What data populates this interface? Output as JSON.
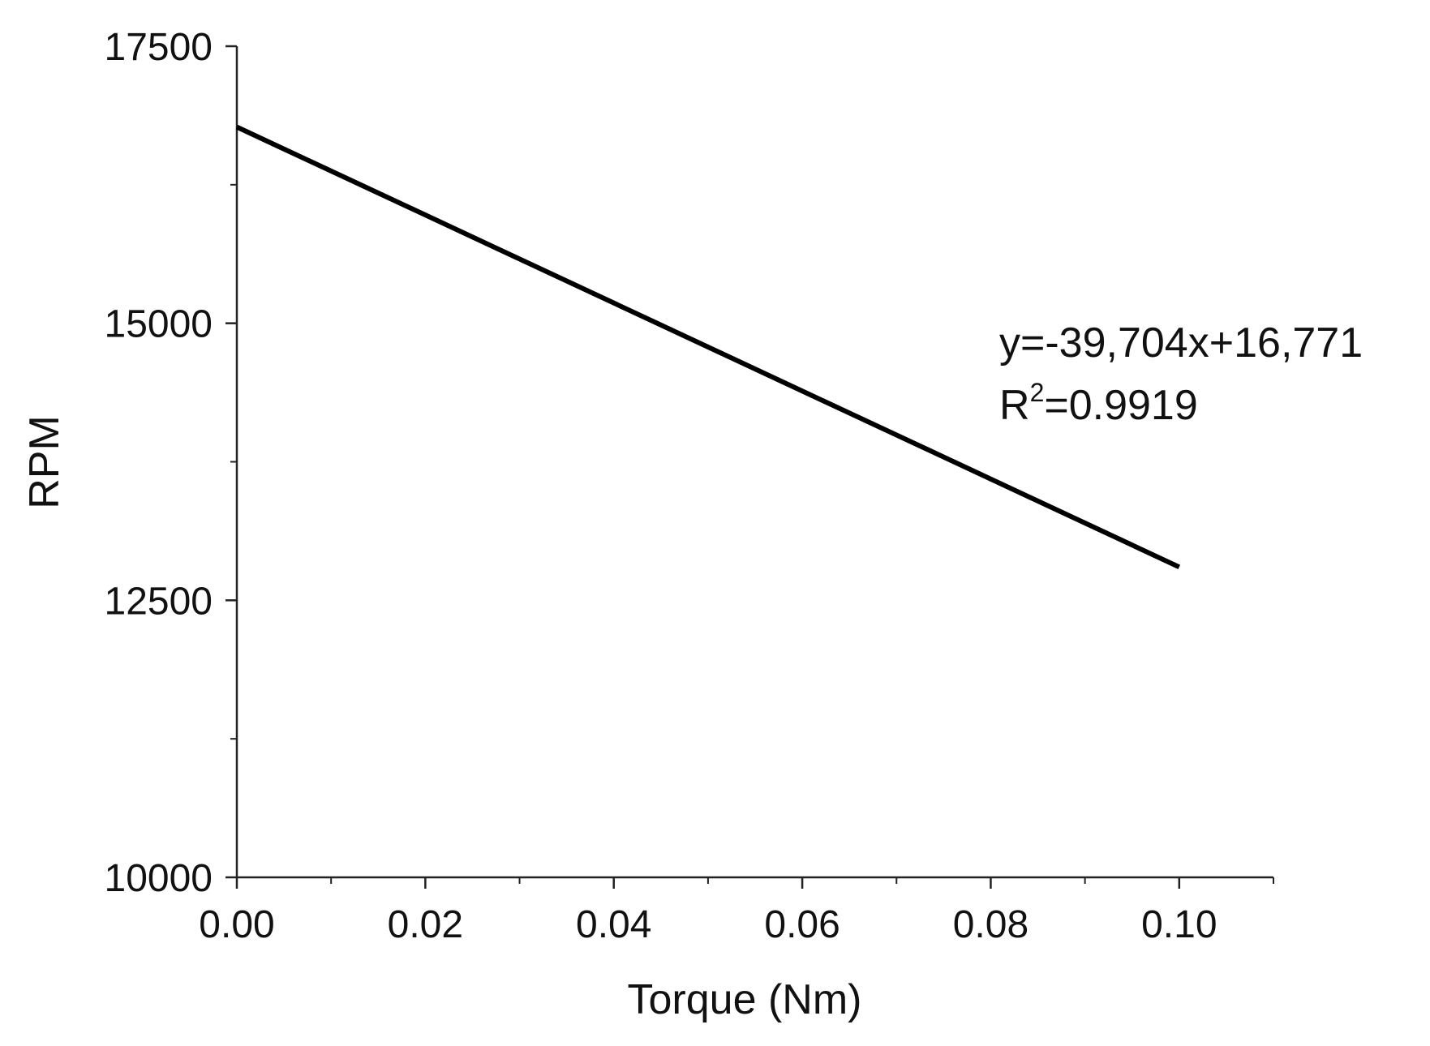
{
  "chart_data": {
    "type": "line",
    "title": "",
    "xlabel": "Torque (Nm)",
    "ylabel": "RPM",
    "xlim": [
      0.0,
      0.11
    ],
    "ylim": [
      10000,
      17500
    ],
    "x_ticks": [
      0.0,
      0.02,
      0.04,
      0.06,
      0.08,
      0.1
    ],
    "x_tick_labels": [
      "0.00",
      "0.02",
      "0.04",
      "0.06",
      "0.08",
      "0.10"
    ],
    "x_minor_ticks": [
      0.01,
      0.03,
      0.05,
      0.07,
      0.09,
      0.11
    ],
    "y_ticks": [
      10000,
      12500,
      15000,
      17500
    ],
    "y_tick_labels": [
      "10000",
      "12500",
      "15000",
      "17500"
    ],
    "y_minor_ticks": [
      11250,
      13750,
      16250
    ],
    "grid": false,
    "series": [
      {
        "x": [
          0.0,
          0.1
        ],
        "y": [
          16771,
          12800
        ],
        "color": "#000000"
      }
    ],
    "annotation": {
      "equation": "y=-39,704x+16,771",
      "r2_prefix": "R",
      "r2_sup": "2",
      "r2_value": "=0.9919"
    }
  }
}
